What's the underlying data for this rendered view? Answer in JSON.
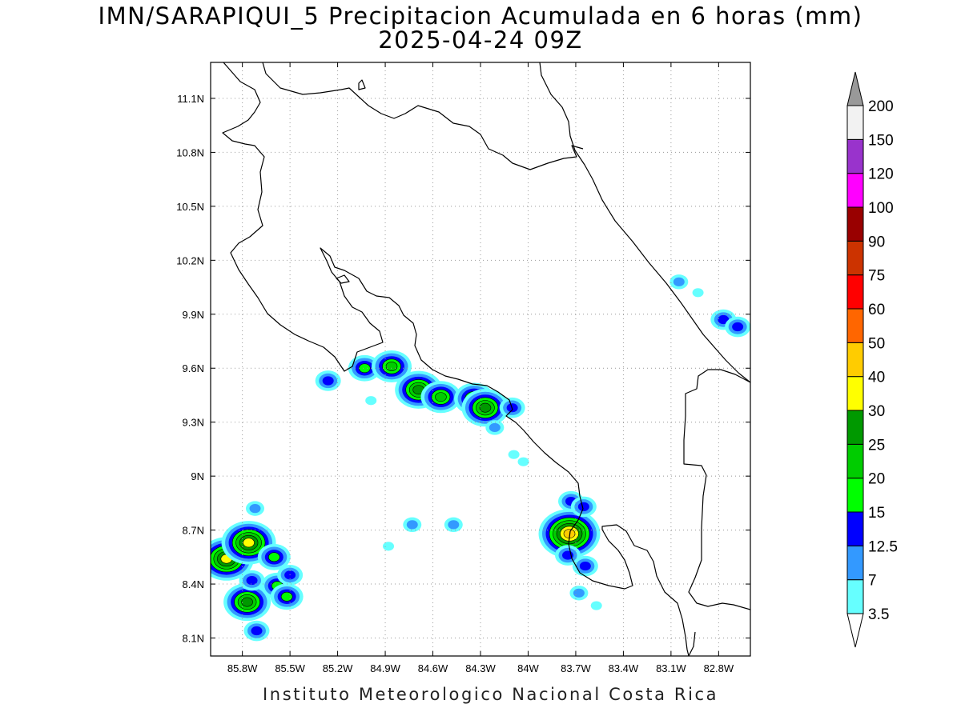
{
  "title": "IMN/SARAPIQUI_5 Precipitacion Acumulada en 6 horas (mm)",
  "subtitle": "2025-04-24 09Z",
  "footer": "Instituto Meteorologico Nacional Costa Rica",
  "map": {
    "lon_range": [
      -86.0,
      -82.6
    ],
    "lat_range": [
      8.0,
      11.3
    ],
    "lon_ticks": [
      {
        "value": -85.8,
        "label": "85.8W"
      },
      {
        "value": -85.5,
        "label": "85.5W"
      },
      {
        "value": -85.2,
        "label": "85.2W"
      },
      {
        "value": -84.9,
        "label": "84.9W"
      },
      {
        "value": -84.6,
        "label": "84.6W"
      },
      {
        "value": -84.3,
        "label": "84.3W"
      },
      {
        "value": -84.0,
        "label": "84W"
      },
      {
        "value": -83.7,
        "label": "83.7W"
      },
      {
        "value": -83.4,
        "label": "83.4W"
      },
      {
        "value": -83.1,
        "label": "83.1W"
      },
      {
        "value": -82.8,
        "label": "82.8W"
      }
    ],
    "lat_ticks": [
      {
        "value": 11.1,
        "label": "11.1N"
      },
      {
        "value": 10.8,
        "label": "10.8N"
      },
      {
        "value": 10.5,
        "label": "10.5N"
      },
      {
        "value": 10.2,
        "label": "10.2N"
      },
      {
        "value": 9.9,
        "label": "9.9N"
      },
      {
        "value": 9.6,
        "label": "9.6N"
      },
      {
        "value": 9.3,
        "label": "9.3N"
      },
      {
        "value": 9.0,
        "label": "9N"
      },
      {
        "value": 8.7,
        "label": "8.7N"
      },
      {
        "value": 8.4,
        "label": "8.4N"
      },
      {
        "value": 8.1,
        "label": "8.1N"
      }
    ],
    "grid": true
  },
  "colorbar": {
    "levels": [
      {
        "label": "3.5",
        "color": "#66ffff"
      },
      {
        "label": "7",
        "color": "#3399ff"
      },
      {
        "label": "12.5",
        "color": "#0000ff"
      },
      {
        "label": "15",
        "color": "#00ff00"
      },
      {
        "label": "20",
        "color": "#00cc00"
      },
      {
        "label": "25",
        "color": "#009900"
      },
      {
        "label": "30",
        "color": "#ffff00"
      },
      {
        "label": "40",
        "color": "#ffcc00"
      },
      {
        "label": "50",
        "color": "#ff6600"
      },
      {
        "label": "60",
        "color": "#ff0000"
      },
      {
        "label": "75",
        "color": "#cc3300"
      },
      {
        "label": "90",
        "color": "#990000"
      },
      {
        "label": "100",
        "color": "#ff00ff"
      },
      {
        "label": "120",
        "color": "#9933cc"
      },
      {
        "label": "150",
        "color": "#f2f2f2"
      },
      {
        "label": "200",
        "color": "#999999"
      }
    ],
    "under_color": "#ffffff",
    "over_color": "#999999"
  },
  "precip_cells": [
    {
      "lon": -85.9,
      "lat": 8.54,
      "level": 7
    },
    {
      "lon": -85.76,
      "lat": 8.63,
      "level": 7
    },
    {
      "lon": -85.6,
      "lat": 8.55,
      "level": 4
    },
    {
      "lon": -85.77,
      "lat": 8.3,
      "level": 6
    },
    {
      "lon": -85.58,
      "lat": 8.39,
      "level": 4
    },
    {
      "lon": -85.52,
      "lat": 8.33,
      "level": 4
    },
    {
      "lon": -85.5,
      "lat": 8.45,
      "level": 3
    },
    {
      "lon": -85.71,
      "lat": 8.14,
      "level": 3
    },
    {
      "lon": -85.74,
      "lat": 8.42,
      "level": 3
    },
    {
      "lon": -85.26,
      "lat": 9.53,
      "level": 3
    },
    {
      "lon": -85.03,
      "lat": 9.6,
      "level": 4
    },
    {
      "lon": -84.86,
      "lat": 9.61,
      "level": 5
    },
    {
      "lon": -84.69,
      "lat": 9.48,
      "level": 6
    },
    {
      "lon": -84.55,
      "lat": 9.44,
      "level": 5
    },
    {
      "lon": -84.34,
      "lat": 9.43,
      "level": 5
    },
    {
      "lon": -84.27,
      "lat": 9.38,
      "level": 6
    },
    {
      "lon": -84.1,
      "lat": 9.38,
      "level": 3
    },
    {
      "lon": -84.21,
      "lat": 9.27,
      "level": 2
    },
    {
      "lon": -83.74,
      "lat": 8.68,
      "level": 8
    },
    {
      "lon": -83.73,
      "lat": 8.86,
      "level": 3
    },
    {
      "lon": -83.65,
      "lat": 8.83,
      "level": 3
    },
    {
      "lon": -83.64,
      "lat": 8.5,
      "level": 3
    },
    {
      "lon": -83.75,
      "lat": 8.56,
      "level": 3
    },
    {
      "lon": -83.68,
      "lat": 8.35,
      "level": 2
    },
    {
      "lon": -82.77,
      "lat": 9.87,
      "level": 3
    },
    {
      "lon": -82.68,
      "lat": 9.83,
      "level": 3
    },
    {
      "lon": -83.05,
      "lat": 10.08,
      "level": 2
    },
    {
      "lon": -82.93,
      "lat": 10.02,
      "level": 1
    },
    {
      "lon": -84.47,
      "lat": 8.73,
      "level": 2
    },
    {
      "lon": -84.73,
      "lat": 8.73,
      "level": 2
    },
    {
      "lon": -84.03,
      "lat": 9.08,
      "level": 1
    },
    {
      "lon": -83.57,
      "lat": 8.28,
      "level": 1
    },
    {
      "lon": -85.72,
      "lat": 8.82,
      "level": 2
    },
    {
      "lon": -84.88,
      "lat": 8.61,
      "level": 1
    },
    {
      "lon": -84.09,
      "lat": 9.12,
      "level": 1
    },
    {
      "lon": -84.99,
      "lat": 9.42,
      "level": 1
    }
  ]
}
